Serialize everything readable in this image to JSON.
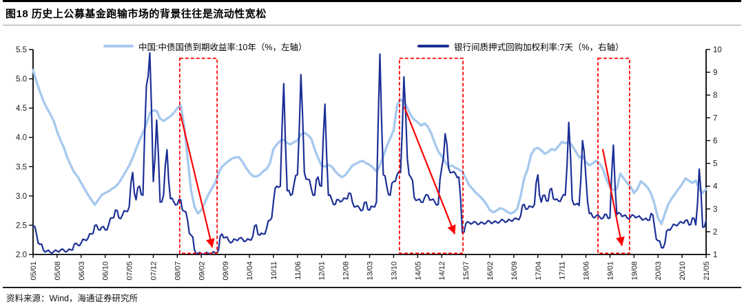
{
  "figure": {
    "title": "图18 历史上公募基金跑输市场的背景往往是流动性宽松",
    "source": "资料来源：Wind，海通证券研究所"
  },
  "chart_data": {
    "type": "line",
    "title": "图18 历史上公募基金跑输市场的背景往往是流动性宽松",
    "x_axis": {
      "start_month": "2005/01",
      "end_month": "2021/05",
      "months_per_tick": 7,
      "tick_labels": [
        "05/01",
        "05/08",
        "06/03",
        "06/10",
        "07/05",
        "07/12",
        "08/07",
        "09/02",
        "09/09",
        "10/04",
        "10/11",
        "11/06",
        "12/01",
        "12/08",
        "13/03",
        "13/10",
        "14/05",
        "14/12",
        "15/07",
        "16/02",
        "16/09",
        "17/04",
        "17/11",
        "18/06",
        "19/01",
        "19/08",
        "20/03",
        "20/10",
        "21/05"
      ]
    },
    "left_axis": {
      "min": 2.0,
      "max": 5.5,
      "tick_values": [
        2.0,
        2.5,
        3.0,
        3.5,
        4.0,
        4.5,
        5.0,
        5.5
      ],
      "tick_labels": [
        "2.0",
        "2.5",
        "3.0",
        "3.5",
        "4.0",
        "4.5",
        "5.0",
        "5.5"
      ]
    },
    "right_axis": {
      "min": 1,
      "max": 10,
      "tick_values": [
        1,
        2,
        3,
        4,
        5,
        6,
        7,
        8,
        9,
        10
      ],
      "tick_labels": [
        "1",
        "2",
        "3",
        "4",
        "5",
        "6",
        "7",
        "8",
        "9",
        "10"
      ]
    },
    "series": [
      {
        "name": "中国:中债国债到期收益率:10年（%，左轴）",
        "axis": "left",
        "color": "#A6C9EE",
        "monthly_values": [
          5.15,
          4.95,
          4.78,
          4.62,
          4.5,
          4.4,
          4.28,
          4.1,
          3.95,
          3.82,
          3.65,
          3.52,
          3.4,
          3.33,
          3.22,
          3.12,
          3.02,
          2.93,
          2.85,
          2.93,
          3.02,
          3.05,
          3.08,
          3.12,
          3.16,
          3.22,
          3.32,
          3.42,
          3.52,
          3.65,
          3.8,
          3.95,
          4.08,
          4.22,
          4.42,
          4.46,
          4.45,
          4.32,
          4.28,
          4.32,
          4.36,
          4.42,
          4.5,
          4.55,
          4.2,
          3.65,
          3.1,
          2.82,
          2.7,
          2.76,
          2.88,
          3.02,
          3.12,
          3.22,
          3.38,
          3.5,
          3.55,
          3.6,
          3.64,
          3.66,
          3.66,
          3.58,
          3.48,
          3.4,
          3.34,
          3.33,
          3.36,
          3.42,
          3.46,
          3.56,
          3.8,
          3.88,
          3.94,
          3.96,
          3.9,
          3.88,
          3.92,
          3.95,
          4.05,
          4.08,
          4.04,
          3.98,
          3.8,
          3.65,
          3.52,
          3.5,
          3.53,
          3.5,
          3.42,
          3.36,
          3.32,
          3.36,
          3.44,
          3.52,
          3.55,
          3.58,
          3.6,
          3.56,
          3.53,
          3.48,
          3.42,
          3.52,
          3.68,
          3.85,
          3.98,
          4.12,
          4.55,
          4.65,
          4.6,
          4.5,
          4.38,
          4.3,
          4.26,
          4.2,
          4.24,
          4.18,
          4.06,
          3.9,
          3.76,
          3.68,
          3.58,
          3.5,
          3.52,
          3.48,
          3.45,
          3.42,
          3.3,
          3.18,
          3.12,
          3.05,
          3.0,
          2.94,
          2.86,
          2.76,
          2.72,
          2.75,
          2.79,
          2.77,
          2.73,
          2.7,
          2.72,
          2.78,
          3.0,
          3.3,
          3.45,
          3.7,
          3.8,
          3.82,
          3.78,
          3.72,
          3.75,
          3.8,
          3.78,
          3.85,
          3.92,
          3.9,
          3.92,
          3.86,
          3.76,
          3.66,
          3.68,
          3.58,
          3.52,
          3.56,
          3.6,
          3.55,
          3.45,
          3.28,
          3.15,
          3.1,
          3.12,
          3.38,
          3.3,
          3.22,
          3.16,
          3.05,
          3.12,
          3.25,
          3.2,
          3.14,
          3.04,
          2.86,
          2.62,
          2.52,
          2.7,
          2.86,
          2.96,
          3.04,
          3.12,
          3.2,
          3.3,
          3.26,
          3.22,
          3.26,
          3.12,
          3.05,
          3.12
        ]
      },
      {
        "name": "银行间质押式回购加权利率:7天（%，右轴）",
        "axis": "right",
        "color": "#1B2F96",
        "monthly_values": [
          2.25,
          1.9,
          1.45,
          1.2,
          1.15,
          1.1,
          1.12,
          1.15,
          1.2,
          1.18,
          1.15,
          1.2,
          1.45,
          1.42,
          1.5,
          1.65,
          1.72,
          1.9,
          2.28,
          2.1,
          2.2,
          2.08,
          2.3,
          2.6,
          2.95,
          2.6,
          2.72,
          2.9,
          3.1,
          4.6,
          3.4,
          4.0,
          3.6,
          8.4,
          9.85,
          4.2,
          6.9,
          3.3,
          3.6,
          5.6,
          3.45,
          3.3,
          3.2,
          3.4,
          2.9,
          2.5,
          1.85,
          1.2,
          1.05,
          1.02,
          1.02,
          1.05,
          1.05,
          1.08,
          1.2,
          1.9,
          1.75,
          1.6,
          1.55,
          1.65,
          1.7,
          1.68,
          1.6,
          1.65,
          1.8,
          2.3,
          1.85,
          1.9,
          2.15,
          2.5,
          3.3,
          4.0,
          4.0,
          8.5,
          3.8,
          3.6,
          4.1,
          4.5,
          8.9,
          4.6,
          4.3,
          3.9,
          3.6,
          4.4,
          4.0,
          7.6,
          3.6,
          3.4,
          3.2,
          3.4,
          3.35,
          3.45,
          3.7,
          3.3,
          3.1,
          3.05,
          2.95,
          3.3,
          2.95,
          3.1,
          3.3,
          9.8,
          4.5,
          4.0,
          3.6,
          4.2,
          4.5,
          4.6,
          8.8,
          5.2,
          4.4,
          3.5,
          3.4,
          3.3,
          3.5,
          3.6,
          3.4,
          3.3,
          3.2,
          4.8,
          6.3,
          4.8,
          4.6,
          4.55,
          4.4,
          1.95,
          2.35,
          2.4,
          2.38,
          2.4,
          2.35,
          2.38,
          2.4,
          2.45,
          2.4,
          2.42,
          2.45,
          2.5,
          2.45,
          2.5,
          2.55,
          2.55,
          2.7,
          3.2,
          3.0,
          3.1,
          3.2,
          4.5,
          3.3,
          3.6,
          3.35,
          3.9,
          3.4,
          3.35,
          3.5,
          3.6,
          6.8,
          3.4,
          3.2,
          3.15,
          6.0,
          4.4,
          2.8,
          2.65,
          2.7,
          2.65,
          2.6,
          2.75,
          2.6,
          5.8,
          2.75,
          2.8,
          2.7,
          2.6,
          2.65,
          2.7,
          2.65,
          2.6,
          2.55,
          2.5,
          2.8,
          2.2,
          1.6,
          1.3,
          1.5,
          2.1,
          2.2,
          2.3,
          2.35,
          2.4,
          2.5,
          2.3,
          2.6,
          2.3,
          4.75,
          2.2,
          2.5
        ]
      }
    ],
    "annotations": {
      "color": "#FF0000",
      "box_value_top": 5.35,
      "box_value_bottom": 2.02,
      "boxes": [
        {
          "month_start": 42.7,
          "month_end": 53.6
        },
        {
          "month_start": 106.7,
          "month_end": 125.2
        },
        {
          "month_start": 164.5,
          "month_end": 173.7
        }
      ],
      "arrows": [
        {
          "from_month": 42.9,
          "from_value": 4.4,
          "to_month": 52.2,
          "to_value": 2.12
        },
        {
          "from_month": 108.1,
          "from_value": 4.52,
          "to_month": 122.8,
          "to_value": 2.35
        },
        {
          "from_month": 165.9,
          "from_value": 3.8,
          "to_month": 171.5,
          "to_value": 2.15
        }
      ]
    },
    "style": {
      "axis_color": "#000000",
      "label_color": "#1a1a1a",
      "background": "#ffffff",
      "legend_position": "top",
      "grid": false
    }
  }
}
